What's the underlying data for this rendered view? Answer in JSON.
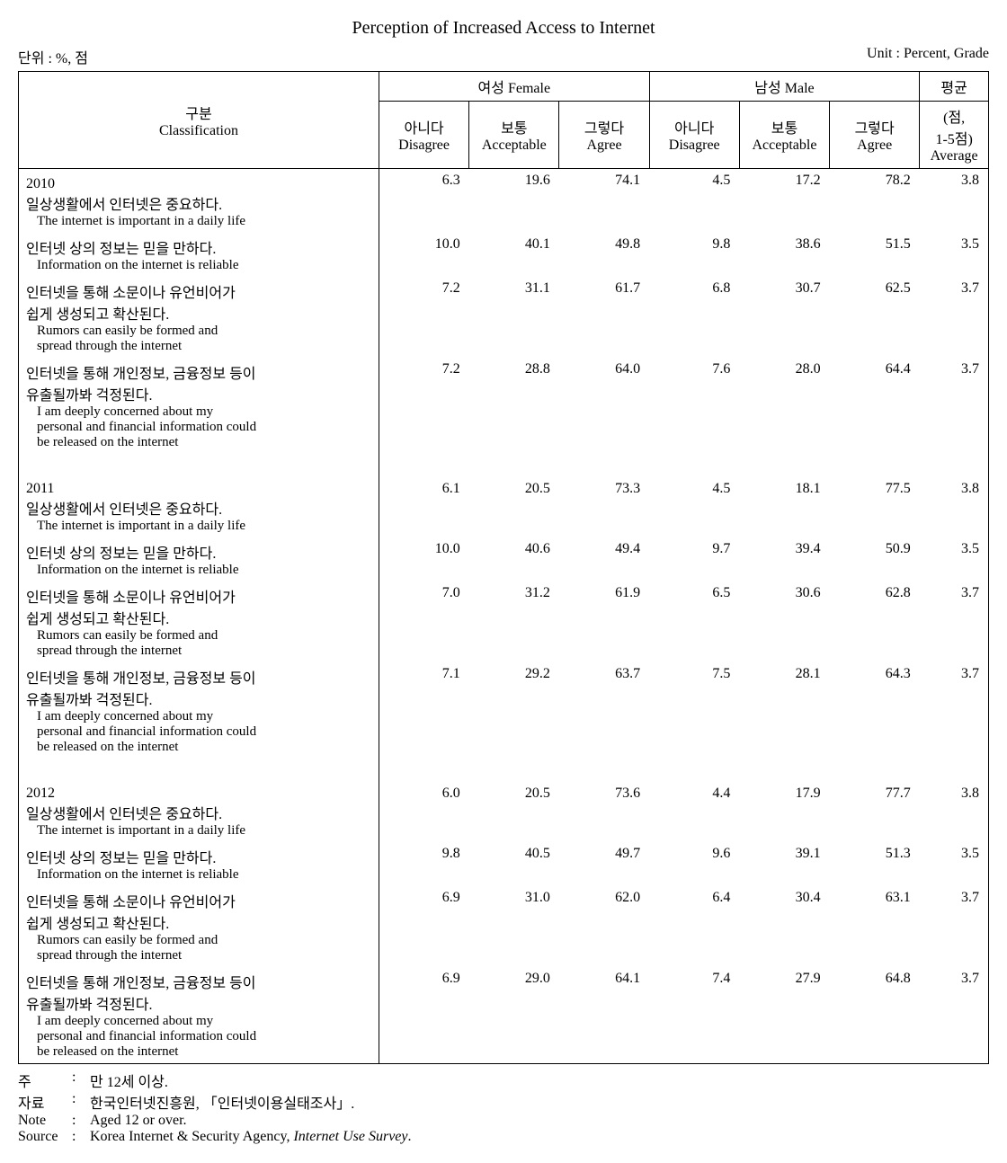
{
  "title": "Perception of Increased Access to Internet",
  "unit_left": "단위 : %, 점",
  "unit_right": "Unit : Percent, Grade",
  "headers": {
    "classification_kr": "구분",
    "classification_en": "Classification",
    "female_kr": "여성",
    "female_en": "Female",
    "male_kr": "남성",
    "male_en": "Male",
    "disagree_kr": "아니다",
    "disagree_en": "Disagree",
    "acceptable_kr": "보통",
    "acceptable_en": "Acceptable",
    "agree_kr": "그렇다",
    "agree_en": "Agree",
    "average_kr": "평균",
    "average_en1": "(점,",
    "average_en2": "1-5점)",
    "average_en3": "Average"
  },
  "items": {
    "item1_kr": "일상생활에서 인터넷은 중요하다.",
    "item1_en": "The internet is important in a daily life",
    "item2_kr": "인터넷 상의 정보는 믿을 만하다.",
    "item2_en": "Information on the internet is reliable",
    "item3_kr1": "인터넷을 통해 소문이나 유언비어가",
    "item3_kr2": "쉽게 생성되고 확산된다.",
    "item3_en1": "Rumors can easily be formed and",
    "item3_en2": "spread through the internet",
    "item4_kr1": "인터넷을 통해 개인정보, 금융정보 등이",
    "item4_kr2": "유출될까봐 걱정된다.",
    "item4_en1": "I am deeply concerned about my",
    "item4_en2": "personal and financial information could",
    "item4_en3": "be released on the internet"
  },
  "years": {
    "y2010": "2010",
    "y2011": "2011",
    "y2012": "2012"
  },
  "data": {
    "2010": {
      "r1": {
        "fd": "6.3",
        "fa": "19.6",
        "fg": "74.1",
        "md": "4.5",
        "ma": "17.2",
        "mg": "78.2",
        "avg": "3.8"
      },
      "r2": {
        "fd": "10.0",
        "fa": "40.1",
        "fg": "49.8",
        "md": "9.8",
        "ma": "38.6",
        "mg": "51.5",
        "avg": "3.5"
      },
      "r3": {
        "fd": "7.2",
        "fa": "31.1",
        "fg": "61.7",
        "md": "6.8",
        "ma": "30.7",
        "mg": "62.5",
        "avg": "3.7"
      },
      "r4": {
        "fd": "7.2",
        "fa": "28.8",
        "fg": "64.0",
        "md": "7.6",
        "ma": "28.0",
        "mg": "64.4",
        "avg": "3.7"
      }
    },
    "2011": {
      "r1": {
        "fd": "6.1",
        "fa": "20.5",
        "fg": "73.3",
        "md": "4.5",
        "ma": "18.1",
        "mg": "77.5",
        "avg": "3.8"
      },
      "r2": {
        "fd": "10.0",
        "fa": "40.6",
        "fg": "49.4",
        "md": "9.7",
        "ma": "39.4",
        "mg": "50.9",
        "avg": "3.5"
      },
      "r3": {
        "fd": "7.0",
        "fa": "31.2",
        "fg": "61.9",
        "md": "6.5",
        "ma": "30.6",
        "mg": "62.8",
        "avg": "3.7"
      },
      "r4": {
        "fd": "7.1",
        "fa": "29.2",
        "fg": "63.7",
        "md": "7.5",
        "ma": "28.1",
        "mg": "64.3",
        "avg": "3.7"
      }
    },
    "2012": {
      "r1": {
        "fd": "6.0",
        "fa": "20.5",
        "fg": "73.6",
        "md": "4.4",
        "ma": "17.9",
        "mg": "77.7",
        "avg": "3.8"
      },
      "r2": {
        "fd": "9.8",
        "fa": "40.5",
        "fg": "49.7",
        "md": "9.6",
        "ma": "39.1",
        "mg": "51.3",
        "avg": "3.5"
      },
      "r3": {
        "fd": "6.9",
        "fa": "31.0",
        "fg": "62.0",
        "md": "6.4",
        "ma": "30.4",
        "mg": "63.1",
        "avg": "3.7"
      },
      "r4": {
        "fd": "6.9",
        "fa": "29.0",
        "fg": "64.1",
        "md": "7.4",
        "ma": "27.9",
        "mg": "64.8",
        "avg": "3.7"
      }
    }
  },
  "footnotes": {
    "note_kr_label": "주",
    "note_kr_text": "만 12세 이상.",
    "source_kr_label": "자료",
    "source_kr_text": "한국인터넷진흥원, 「인터넷이용실태조사」.",
    "note_en_label": "Note",
    "note_en_text": "Aged 12 or over.",
    "source_en_label": "Source",
    "source_en_text_pre": "Korea Internet & Security Agency, ",
    "source_en_text_italic": "Internet Use Survey",
    "source_en_text_post": "."
  }
}
